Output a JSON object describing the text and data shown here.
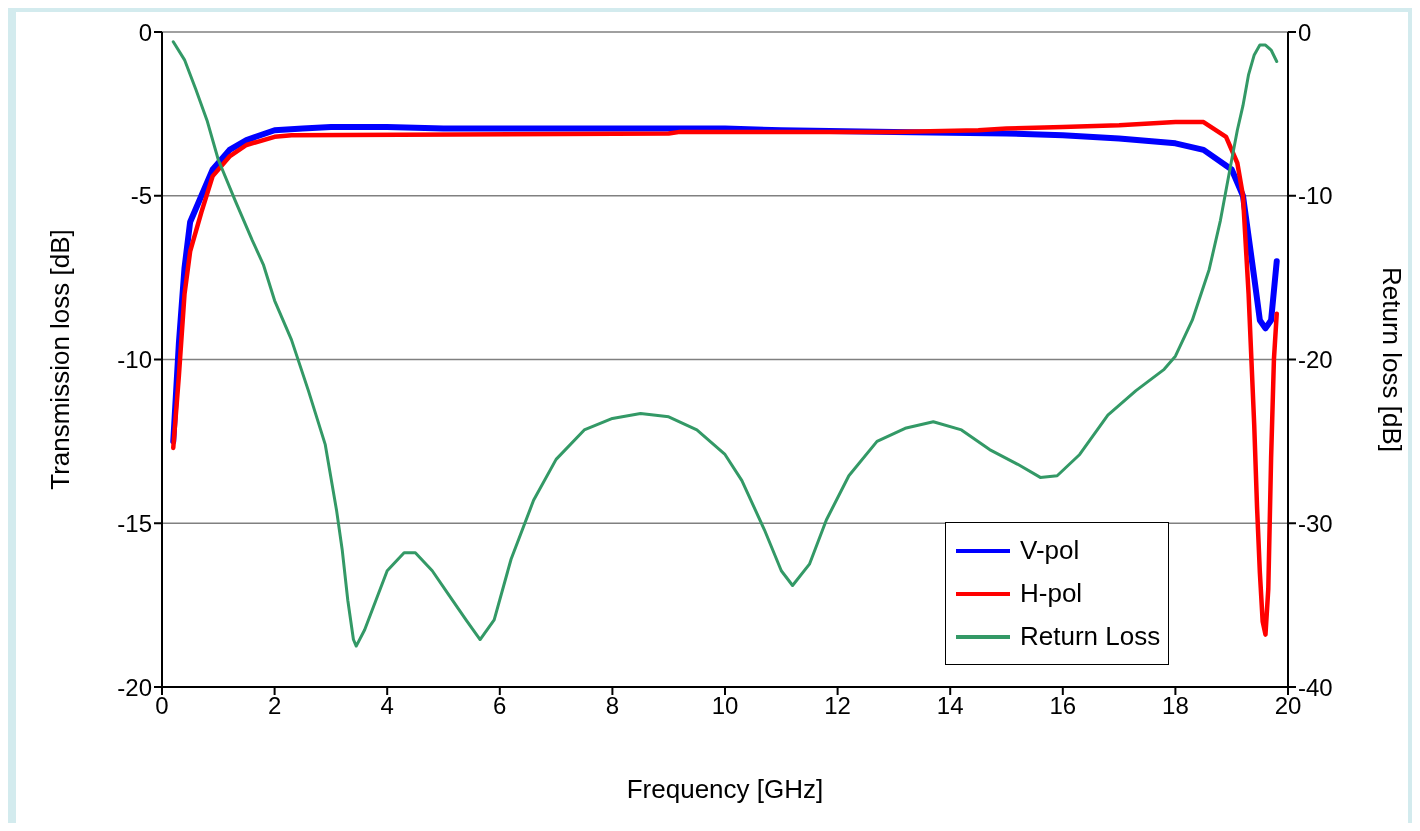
{
  "chart_data": {
    "type": "line",
    "xlabel": "Frequency [GHz]",
    "ylabel": "Transmission loss [dB]",
    "y2label": "Return loss [dB]",
    "xlim": [
      0,
      20
    ],
    "xticks": [
      0,
      2,
      4,
      6,
      8,
      10,
      12,
      14,
      16,
      18,
      20
    ],
    "ylim": [
      -20,
      0
    ],
    "yticks": [
      -20,
      -15,
      -10,
      -5,
      0
    ],
    "y2lim": [
      -40,
      0
    ],
    "y2ticks": [
      -40,
      -30,
      -20,
      -10,
      0
    ],
    "grid": true,
    "legend": "bottom right",
    "marker": "none",
    "line_style": "solid",
    "series": [
      {
        "name": "V-pol",
        "color": "#0000ff",
        "x": [
          0.2,
          0.3,
          0.4,
          0.5,
          0.7,
          0.9,
          1.2,
          1.5,
          2,
          2.5,
          3,
          4,
          5,
          8,
          10,
          11,
          13,
          15,
          16,
          17,
          18,
          18.5,
          19,
          19.2,
          19.4,
          19.5,
          19.6,
          19.7,
          19.8
        ],
        "values": [
          -12.5,
          -9.5,
          -7.2,
          -5.8,
          -5.0,
          -4.2,
          -3.6,
          -3.3,
          -3.0,
          -2.95,
          -2.9,
          -2.9,
          -2.95,
          -2.95,
          -2.95,
          -3.0,
          -3.05,
          -3.1,
          -3.15,
          -3.25,
          -3.4,
          -3.6,
          -4.2,
          -5.0,
          -7.5,
          -8.8,
          -9.05,
          -8.8,
          -7.0
        ]
      },
      {
        "name": "H-pol",
        "color": "#ff0000",
        "x": [
          0.2,
          0.3,
          0.4,
          0.5,
          0.7,
          0.9,
          1.2,
          1.5,
          2,
          2.3,
          9,
          9.2,
          13,
          14.5,
          15,
          16,
          17,
          18,
          18.5,
          18.9,
          19.1,
          19.2,
          19.3,
          19.4,
          19.45,
          19.5,
          19.55,
          19.6,
          19.65,
          19.7,
          19.75,
          19.8
        ],
        "values": [
          -12.7,
          -10.5,
          -8.0,
          -6.7,
          -5.5,
          -4.4,
          -3.8,
          -3.45,
          -3.2,
          -3.15,
          -3.1,
          -3.05,
          -3.05,
          -3.0,
          -2.95,
          -2.9,
          -2.85,
          -2.75,
          -2.75,
          -3.2,
          -4.0,
          -5.0,
          -8.0,
          -12.0,
          -14.5,
          -16.5,
          -18.0,
          -18.4,
          -17.0,
          -13.0,
          -10.0,
          -8.6
        ]
      },
      {
        "name": "Return Loss",
        "color": "#339966",
        "axis": "y2",
        "x": [
          0.2,
          0.4,
          0.6,
          0.8,
          1.0,
          1.3,
          1.6,
          1.8,
          2.0,
          2.3,
          2.6,
          2.9,
          3.1,
          3.2,
          3.3,
          3.4,
          3.45,
          3.6,
          3.8,
          4.0,
          4.3,
          4.5,
          4.8,
          5.1,
          5.4,
          5.65,
          5.9,
          6.2,
          6.6,
          7.0,
          7.5,
          8.0,
          8.5,
          9.0,
          9.5,
          10.0,
          10.3,
          10.7,
          11.0,
          11.2,
          11.5,
          11.8,
          12.2,
          12.7,
          13.2,
          13.7,
          14.2,
          14.7,
          15.2,
          15.6,
          15.9,
          16.3,
          16.8,
          17.3,
          17.8,
          18.0,
          18.3,
          18.6,
          18.8,
          19.0,
          19.1,
          19.2,
          19.3,
          19.4,
          19.5,
          19.6,
          19.7,
          19.8
        ],
        "values": [
          -0.6,
          -1.7,
          -3.5,
          -5.4,
          -7.8,
          -10.3,
          -12.7,
          -14.2,
          -16.4,
          -18.8,
          -21.9,
          -25.2,
          -29.2,
          -31.6,
          -34.7,
          -37.1,
          -37.5,
          -36.5,
          -34.7,
          -32.9,
          -31.8,
          -31.8,
          -32.9,
          -34.4,
          -35.9,
          -37.1,
          -35.9,
          -32.2,
          -28.6,
          -26.1,
          -24.3,
          -23.6,
          -23.3,
          -23.5,
          -24.3,
          -25.8,
          -27.4,
          -30.4,
          -32.9,
          -33.8,
          -32.5,
          -29.8,
          -27.1,
          -25.0,
          -24.2,
          -23.8,
          -24.3,
          -25.5,
          -26.4,
          -27.2,
          -27.1,
          -25.8,
          -23.4,
          -21.9,
          -20.6,
          -19.8,
          -17.6,
          -14.5,
          -11.5,
          -7.8,
          -6.0,
          -4.5,
          -2.6,
          -1.4,
          -0.8,
          -0.8,
          -1.1,
          -1.8
        ]
      }
    ]
  }
}
